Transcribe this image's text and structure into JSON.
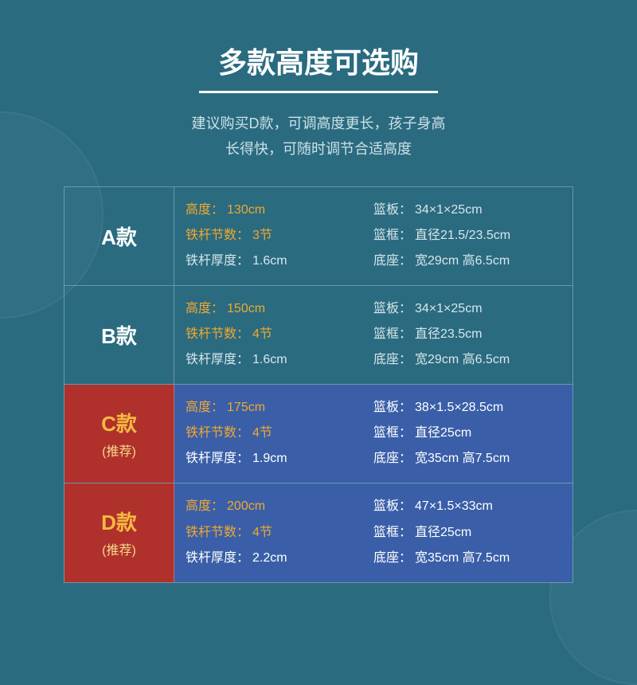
{
  "colors": {
    "bg": "#2a6b80",
    "white": "#ffffff",
    "subtitle": "#cde0e6",
    "gold": "#f0a830",
    "model_rec_bg": "#b0302c",
    "rec_spec_bg": "#3a5fa8",
    "rec_model_text": "#f5b940",
    "rec_badge": "#f5d98a",
    "value_dim": "#d8e6ea"
  },
  "title": "多款高度可选购",
  "subtitle_line1": "建议购买D款，可调高度更长，孩子身高",
  "subtitle_line2": "长得快，可随时调节合适高度",
  "labels": {
    "height": "高度：",
    "sections": "铁杆节数：",
    "thickness": "铁杆厚度：",
    "backboard": "篮板：",
    "rim": "篮框：",
    "base": "底座："
  },
  "rec_badge": "(推荐)",
  "rows": [
    {
      "model": "A款",
      "recommended": false,
      "height": "130cm",
      "sections": "3节",
      "thickness": "1.6cm",
      "backboard": "34×1×25cm",
      "rim": "直径21.5/23.5cm",
      "base": "宽29cm  高6.5cm"
    },
    {
      "model": "B款",
      "recommended": false,
      "height": "150cm",
      "sections": "4节",
      "thickness": "1.6cm",
      "backboard": "34×1×25cm",
      "rim": "直径23.5cm",
      "base": "宽29cm  高6.5cm"
    },
    {
      "model": "C款",
      "recommended": true,
      "height": "175cm",
      "sections": "4节",
      "thickness": "1.9cm",
      "backboard": "38×1.5×28.5cm",
      "rim": "直径25cm",
      "base": "宽35cm  高7.5cm"
    },
    {
      "model": "D款",
      "recommended": true,
      "height": "200cm",
      "sections": "4节",
      "thickness": "2.2cm",
      "backboard": "47×1.5×33cm",
      "rim": "直径25cm",
      "base": "宽35cm  高7.5cm"
    }
  ]
}
